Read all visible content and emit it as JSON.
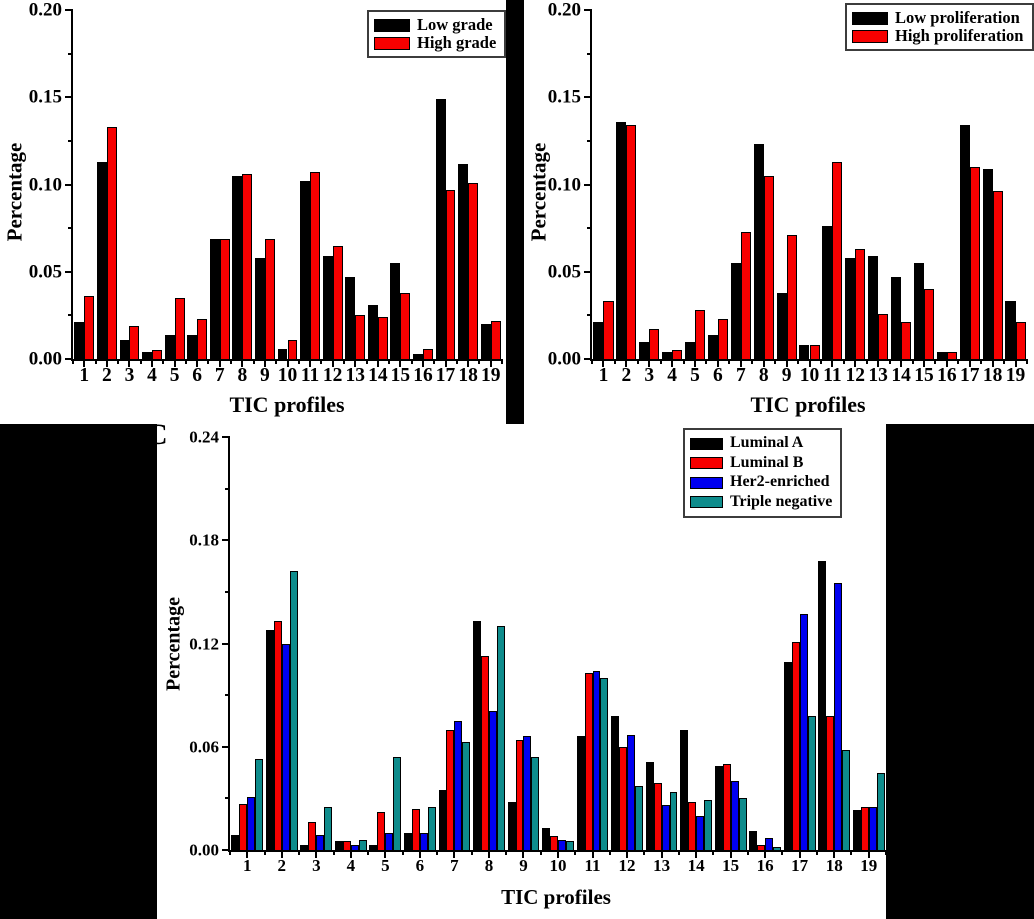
{
  "chart_data": [
    {
      "type": "bar",
      "panel": "top-left",
      "title": "",
      "xlabel": "TIC profiles",
      "ylabel": "Percentage",
      "categories": [
        "1",
        "2",
        "3",
        "4",
        "5",
        "6",
        "7",
        "8",
        "9",
        "10",
        "11",
        "12",
        "13",
        "14",
        "15",
        "16",
        "17",
        "18",
        "19"
      ],
      "ylim": [
        0,
        0.2
      ],
      "ytick_values": [
        0.0,
        0.05,
        0.1,
        0.15,
        0.2
      ],
      "ytick_labels": [
        "0.00",
        "0.05",
        "0.10",
        "0.15",
        "0.20"
      ],
      "yminor_values": [
        0.025,
        0.075,
        0.125,
        0.175
      ],
      "grid": false,
      "legend_position": "top-right",
      "series": [
        {
          "name": "Low grade",
          "color": "#000000",
          "values": [
            0.021,
            0.113,
            0.011,
            0.004,
            0.014,
            0.014,
            0.069,
            0.105,
            0.058,
            0.006,
            0.102,
            0.059,
            0.047,
            0.031,
            0.055,
            0.003,
            0.149,
            0.112,
            0.02
          ]
        },
        {
          "name": "High grade",
          "color": "#f70000",
          "values": [
            0.036,
            0.133,
            0.019,
            0.005,
            0.035,
            0.023,
            0.069,
            0.106,
            0.069,
            0.011,
            0.107,
            0.065,
            0.025,
            0.024,
            0.038,
            0.006,
            0.097,
            0.101,
            0.022
          ]
        }
      ]
    },
    {
      "type": "bar",
      "panel": "top-right",
      "title": "",
      "xlabel": "TIC profiles",
      "ylabel": "Percentage",
      "categories": [
        "1",
        "2",
        "3",
        "4",
        "5",
        "6",
        "7",
        "8",
        "9",
        "10",
        "11",
        "12",
        "13",
        "14",
        "15",
        "16",
        "17",
        "18",
        "19"
      ],
      "ylim": [
        0,
        0.2
      ],
      "ytick_values": [
        0.0,
        0.05,
        0.1,
        0.15,
        0.2
      ],
      "ytick_labels": [
        "0.00",
        "0.05",
        "0.10",
        "0.15",
        "0.20"
      ],
      "yminor_values": [
        0.025,
        0.075,
        0.125,
        0.175
      ],
      "grid": false,
      "legend_position": "top-right",
      "series": [
        {
          "name": "Low proliferation",
          "color": "#000000",
          "values": [
            0.021,
            0.136,
            0.01,
            0.004,
            0.01,
            0.014,
            0.055,
            0.123,
            0.038,
            0.008,
            0.076,
            0.058,
            0.059,
            0.047,
            0.055,
            0.004,
            0.134,
            0.109,
            0.033
          ]
        },
        {
          "name": "High proliferation",
          "color": "#f70000",
          "values": [
            0.033,
            0.134,
            0.017,
            0.005,
            0.028,
            0.023,
            0.073,
            0.105,
            0.071,
            0.008,
            0.113,
            0.063,
            0.026,
            0.021,
            0.04,
            0.004,
            0.11,
            0.096,
            0.021
          ]
        }
      ]
    },
    {
      "type": "bar",
      "panel": "bottom",
      "panel_label": "C",
      "title": "",
      "xlabel": "TIC profiles",
      "ylabel": "Percentage",
      "categories": [
        "1",
        "2",
        "3",
        "4",
        "5",
        "6",
        "7",
        "8",
        "9",
        "10",
        "11",
        "12",
        "13",
        "14",
        "15",
        "16",
        "17",
        "18",
        "19"
      ],
      "ylim": [
        0,
        0.24
      ],
      "ytick_values": [
        0.0,
        0.06,
        0.12,
        0.18,
        0.24
      ],
      "ytick_labels": [
        "0.00",
        "0.06",
        "0.12",
        "0.18",
        "0.24"
      ],
      "yminor_values": [
        0.03,
        0.09,
        0.15,
        0.21
      ],
      "grid": false,
      "legend_position": "top-right",
      "series": [
        {
          "name": "Luminal A",
          "color": "#000000",
          "values": [
            0.009,
            0.128,
            0.003,
            0.005,
            0.003,
            0.01,
            0.035,
            0.133,
            0.028,
            0.013,
            0.066,
            0.078,
            0.051,
            0.07,
            0.049,
            0.011,
            0.109,
            0.168,
            0.023
          ]
        },
        {
          "name": "Luminal B",
          "color": "#f70000",
          "values": [
            0.027,
            0.133,
            0.016,
            0.005,
            0.022,
            0.024,
            0.07,
            0.113,
            0.064,
            0.008,
            0.103,
            0.06,
            0.039,
            0.028,
            0.05,
            0.003,
            0.121,
            0.078,
            0.025
          ]
        },
        {
          "name": "Her2-enriched",
          "color": "#0000f0",
          "values": [
            0.031,
            0.12,
            0.009,
            0.003,
            0.01,
            0.01,
            0.075,
            0.081,
            0.066,
            0.006,
            0.104,
            0.067,
            0.026,
            0.02,
            0.04,
            0.007,
            0.137,
            0.155,
            0.025
          ]
        },
        {
          "name": "Triple negative",
          "color": "#0e8c8c",
          "values": [
            0.053,
            0.162,
            0.025,
            0.006,
            0.054,
            0.025,
            0.063,
            0.13,
            0.054,
            0.005,
            0.1,
            0.037,
            0.034,
            0.029,
            0.03,
            0.002,
            0.078,
            0.058,
            0.045
          ]
        }
      ]
    }
  ]
}
